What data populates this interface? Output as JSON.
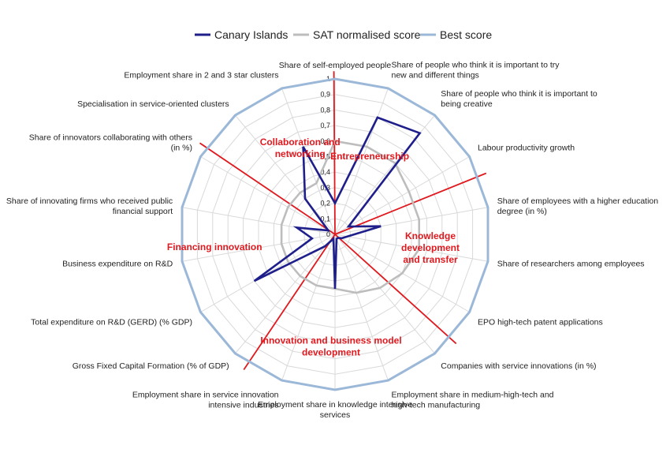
{
  "chart_data": {
    "type": "radar",
    "title": "",
    "r_range": [
      0,
      1
    ],
    "ticks": [
      "0",
      "0,1",
      "0,2",
      "0,3",
      "0,4",
      "0,5",
      "0,6",
      "0,7",
      "0,8",
      "0,9",
      "1"
    ],
    "grid": true,
    "legend_position": "top",
    "axes": [
      {
        "label": [
          "Share of self-employed people"
        ]
      },
      {
        "label": [
          "Share of people who think it is important to try",
          "new and different things"
        ]
      },
      {
        "label": [
          "Share of people who think it is important to",
          "being creative"
        ]
      },
      {
        "label": [
          "Labour productivity growth"
        ]
      },
      {
        "label": [
          "Share of employees with a higher education",
          "degree (in %)"
        ]
      },
      {
        "label": [
          "Share of researchers among employees"
        ]
      },
      {
        "label": [
          "EPO high-tech patent applications"
        ]
      },
      {
        "label": [
          "Companies with service innovations (in %)"
        ]
      },
      {
        "label": [
          "Employment share in medium-high-tech and",
          "high-tech manufacturing"
        ]
      },
      {
        "label": [
          "Employment share in knowledge intensive",
          "services"
        ]
      },
      {
        "label": [
          "Employment share in service innovation",
          "intensive industries"
        ]
      },
      {
        "label": [
          "Gross Fixed Capital Formation (% of GDP)"
        ]
      },
      {
        "label": [
          "Total expenditure on R&D (GERD) (% GDP)"
        ]
      },
      {
        "label": [
          "Business expenditure on R&D"
        ]
      },
      {
        "label": [
          "Share of innovating firms who received public",
          "financial support"
        ]
      },
      {
        "label": [
          "Share of innovators collaborating with others",
          "(in %)"
        ]
      },
      {
        "label": [
          "Specialisation in service-oriented clusters"
        ]
      },
      {
        "label": [
          "Employment share in 2 and 3 star clusters"
        ]
      }
    ],
    "series": [
      {
        "name": "Canary Islands",
        "color": "#1f1f8c",
        "values": [
          0.2,
          0.8,
          0.85,
          0.1,
          0.3,
          0.08,
          0.05,
          0.03,
          0.03,
          0.35,
          0.03,
          0.1,
          0.6,
          0.15,
          0.25,
          0.05,
          0.3,
          0.6
        ]
      },
      {
        "name": "SAT normalised score",
        "color": "#bdbdbd",
        "values": [
          0.6,
          0.6,
          0.6,
          0.55,
          0.55,
          0.55,
          0.5,
          0.45,
          0.4,
          0.35,
          0.35,
          0.35,
          0.35,
          0.35,
          0.35,
          0.35,
          0.35,
          0.35
        ]
      },
      {
        "name": "Best score",
        "color": "#9cb8d8",
        "values": [
          1,
          1,
          1,
          1,
          1,
          1,
          1,
          1,
          1,
          1,
          1,
          1,
          1,
          1,
          1,
          1,
          1,
          1
        ]
      }
    ],
    "group_separators": [
      -0.02,
      3.4,
      6.6,
      10.7,
      15.2
    ],
    "group_labels": [
      {
        "lines": [
          "Entrepreneurship"
        ],
        "axis": 1.2,
        "r": 0.55
      },
      {
        "lines": [
          "Knowledge",
          "development",
          "and transfer"
        ],
        "axis": 4.9,
        "r": 0.62
      },
      {
        "lines": [
          "Innovation and business model",
          "development"
        ],
        "axis": 9.1,
        "r": 0.72
      },
      {
        "lines": [
          "Financing innovation"
        ],
        "axis": 13.2,
        "r": 0.78
      },
      {
        "lines": [
          "Collaboration and",
          "networking"
        ],
        "axis": 16.9,
        "r": 0.6
      }
    ]
  }
}
